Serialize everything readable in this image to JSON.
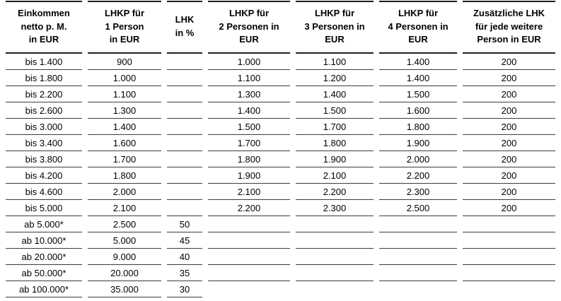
{
  "colors": {
    "background": "#ffffff",
    "text": "#000000",
    "header_rule": "#1f1f1f",
    "row_rule": "#3c3c3c"
  },
  "table": {
    "columns": [
      {
        "label": "Einkommen\nnetto p. M.\nin EUR"
      },
      {
        "label": "LHKP für\n1 Person\nin EUR"
      },
      {
        "label": "LHK\nin %"
      },
      {
        "label": "LHKP für\n2 Personen in\nEUR"
      },
      {
        "label": "LHKP für\n3 Personen in\nEUR"
      },
      {
        "label": "LHKP für\n4 Personen in\nEUR"
      },
      {
        "label": "Zusätzliche LHK\nfür jede weitere\nPerson in EUR"
      }
    ],
    "rows": [
      [
        "bis 1.400",
        "900",
        "",
        "1.000",
        "1.100",
        "1.400",
        "200"
      ],
      [
        "bis 1.800",
        "1.000",
        "",
        "1.100",
        "1.200",
        "1.400",
        "200"
      ],
      [
        "bis 2.200",
        "1.100",
        "",
        "1.300",
        "1.400",
        "1.500",
        "200"
      ],
      [
        "bis 2.600",
        "1.300",
        "",
        "1.400",
        "1.500",
        "1.600",
        "200"
      ],
      [
        "bis 3.000",
        "1.400",
        "",
        "1.500",
        "1.700",
        "1.800",
        "200"
      ],
      [
        "bis 3.400",
        "1.600",
        "",
        "1.700",
        "1.800",
        "1.900",
        "200"
      ],
      [
        "bis 3.800",
        "1.700",
        "",
        "1.800",
        "1.900",
        "2.000",
        "200"
      ],
      [
        "bis 4.200",
        "1.800",
        "",
        "1.900",
        "2.100",
        "2.200",
        "200"
      ],
      [
        "bis 4.600",
        "2.000",
        "",
        "2.100",
        "2.200",
        "2.300",
        "200"
      ],
      [
        "bis 5.000",
        "2.100",
        "",
        "2.200",
        "2.300",
        "2.500",
        "200"
      ],
      [
        "ab 5.000*",
        "2.500",
        "50",
        "",
        "",
        "",
        ""
      ],
      [
        "ab 10.000*",
        "5.000",
        "45",
        "",
        "",
        "",
        ""
      ],
      [
        "ab 20.000*",
        "9.000",
        "40",
        "",
        "",
        "",
        ""
      ],
      [
        "ab 50.000*",
        "20.000",
        "35",
        "",
        "",
        "",
        ""
      ],
      [
        "ab 100.000*",
        "35.000",
        "30",
        "",
        "",
        "",
        ""
      ]
    ]
  }
}
